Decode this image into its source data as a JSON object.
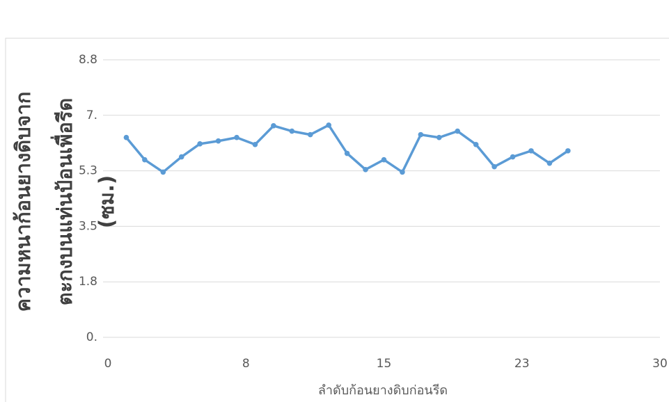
{
  "chart_data": {
    "type": "line",
    "ylabel_lines": [
      "ความหนาก้อนยางดิบจาก",
      "ตะกงบนแท่นป้อนเพื่อรีด",
      "(ซม.)"
    ],
    "xlabel": "ลำดับก้อนยางดิบก่อนรีด",
    "x": [
      1,
      2,
      3,
      4,
      5,
      6,
      7,
      8,
      9,
      10,
      11,
      12,
      13,
      14,
      15,
      16,
      17,
      18,
      19,
      20,
      21,
      22,
      23,
      24,
      25
    ],
    "series": [
      {
        "name": null,
        "color": "#5b9bd5",
        "values": [
          6.3,
          5.6,
          5.21,
          5.69,
          6.1,
          6.19,
          6.3,
          6.08,
          6.67,
          6.5,
          6.39,
          6.69,
          5.8,
          5.29,
          5.6,
          5.21,
          6.39,
          6.3,
          6.5,
          6.08,
          5.38,
          5.69,
          5.88,
          5.49,
          5.88
        ]
      }
    ],
    "xlim": [
      0,
      30
    ],
    "xticks": [
      0,
      {
        "value": 7.5,
        "label": "8"
      },
      15,
      {
        "value": 22.5,
        "label": "23"
      },
      30
    ],
    "ylim": [
      0,
      8.75
    ],
    "yticks": [
      {
        "value": 0,
        "label": "0."
      },
      {
        "value": 1.75,
        "label": "1.8"
      },
      3.5,
      {
        "value": 5.25,
        "label": "5.3"
      },
      {
        "value": 7,
        "label": "7."
      },
      {
        "value": 8.75,
        "label": "8.8"
      }
    ],
    "grid": true
  }
}
